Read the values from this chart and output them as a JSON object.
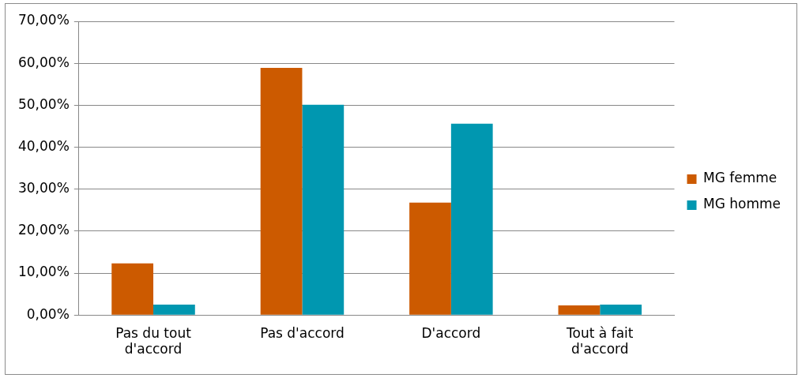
{
  "chart_data": {
    "type": "bar",
    "categories": [
      "Pas du tout d'accord",
      "Pas d'accord",
      "D'accord",
      "Tout à fait d'accord"
    ],
    "series": [
      {
        "name": "MG femme",
        "color": "#cc5a00",
        "values": [
          12.3,
          58.9,
          26.8,
          2.3
        ]
      },
      {
        "name": "MG homme",
        "color": "#0097b0",
        "values": [
          2.5,
          50.1,
          45.6,
          2.5
        ]
      }
    ],
    "ylim": [
      0,
      70
    ],
    "yticks": [
      {
        "value": 0,
        "label": "0,00%"
      },
      {
        "value": 10,
        "label": "10,00%"
      },
      {
        "value": 20,
        "label": "20,00%"
      },
      {
        "value": 30,
        "label": "30,00%"
      },
      {
        "value": 40,
        "label": "40,00%"
      },
      {
        "value": 50,
        "label": "50,00%"
      },
      {
        "value": 60,
        "label": "60,00%"
      },
      {
        "value": 70,
        "label": "70,00%"
      }
    ],
    "grid": "y",
    "legend": "right"
  }
}
